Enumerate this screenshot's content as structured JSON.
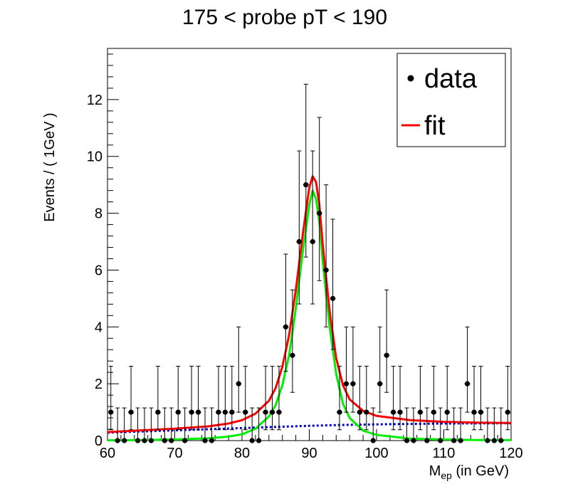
{
  "chart_data": {
    "type": "scatter",
    "title": "175 < probe pT < 190",
    "xlabel": {
      "main": "M",
      "sub": "ep",
      "rest": " (in GeV)"
    },
    "ylabel": "Events / ( 1GeV )",
    "xlim": [
      60,
      120
    ],
    "ylim": [
      0,
      13.8
    ],
    "x_ticks": [
      60,
      70,
      80,
      90,
      100,
      110,
      120
    ],
    "y_ticks": [
      0,
      2,
      4,
      6,
      8,
      10,
      12
    ],
    "grid": false,
    "legend_position": "top-right",
    "legend": [
      {
        "label": "data",
        "marker": "dot",
        "color": "#000000"
      },
      {
        "label": "fit",
        "marker": "line",
        "color": "#ff0000"
      }
    ],
    "series": [
      {
        "name": "data",
        "kind": "points_with_errors",
        "color": "#000000",
        "x": [
          60.5,
          61.5,
          62.5,
          63.5,
          64.5,
          65.5,
          66.5,
          67.5,
          68.5,
          69.5,
          70.5,
          71.5,
          72.5,
          73.5,
          74.5,
          75.5,
          76.5,
          77.5,
          78.5,
          79.5,
          80.5,
          81.5,
          82.5,
          83.5,
          84.5,
          85.5,
          86.5,
          87.5,
          88.5,
          89.5,
          90.5,
          91.5,
          92.5,
          93.5,
          94.5,
          95.5,
          96.5,
          97.5,
          98.5,
          99.5,
          100.5,
          101.5,
          102.5,
          103.5,
          104.5,
          105.5,
          106.5,
          107.5,
          108.5,
          109.5,
          110.5,
          111.5,
          112.5,
          113.5,
          114.5,
          115.5,
          116.5,
          117.5,
          118.5,
          119.5
        ],
        "y": [
          1,
          0,
          0,
          1,
          0,
          0,
          0,
          1,
          0,
          0,
          1,
          0,
          1,
          1,
          0,
          0,
          1,
          1,
          1,
          2,
          1,
          0,
          0,
          1,
          1,
          1,
          4,
          3,
          7,
          9,
          7,
          8,
          6,
          5,
          1,
          2,
          2,
          1,
          1,
          0,
          2,
          3,
          1,
          1,
          0,
          0,
          1,
          0,
          1,
          0,
          1,
          0,
          0,
          2,
          1,
          1,
          0,
          0,
          0,
          1
        ]
      },
      {
        "name": "fit",
        "kind": "curve",
        "color": "#ff0000",
        "x": [
          60,
          65,
          70,
          75,
          78,
          80,
          82,
          84,
          85,
          86,
          87,
          88,
          89,
          90,
          90.5,
          91,
          91.5,
          92,
          93,
          94,
          95,
          96,
          98,
          100,
          105,
          110,
          115,
          120
        ],
        "y": [
          0.3,
          0.36,
          0.42,
          0.5,
          0.6,
          0.72,
          0.95,
          1.4,
          1.85,
          2.6,
          3.7,
          5.3,
          7.2,
          8.9,
          9.3,
          9.1,
          8.3,
          6.9,
          4.6,
          2.9,
          1.95,
          1.45,
          1.05,
          0.87,
          0.72,
          0.66,
          0.63,
          0.62
        ]
      },
      {
        "kind": "curve",
        "color": "#00ee00",
        "x": [
          60,
          65,
          70,
          75,
          78,
          80,
          82,
          84,
          85,
          86,
          87,
          88,
          89,
          90,
          90.5,
          91,
          91.5,
          92,
          93,
          94,
          95,
          96,
          98,
          100,
          105,
          110,
          115,
          120
        ],
        "y": [
          0.01,
          0.02,
          0.04,
          0.08,
          0.14,
          0.22,
          0.42,
          0.85,
          1.25,
          1.95,
          3.0,
          4.65,
          6.6,
          8.3,
          8.8,
          8.5,
          7.7,
          6.3,
          4.05,
          2.35,
          1.3,
          0.8,
          0.35,
          0.2,
          0.07,
          0.04,
          0.02,
          0.02
        ]
      },
      {
        "kind": "dotted",
        "color": "#0000cc",
        "x": [
          60,
          70,
          80,
          85,
          90,
          95,
          100,
          110,
          120
        ],
        "y": [
          0.28,
          0.36,
          0.44,
          0.48,
          0.52,
          0.55,
          0.57,
          0.6,
          0.61
        ]
      }
    ]
  }
}
